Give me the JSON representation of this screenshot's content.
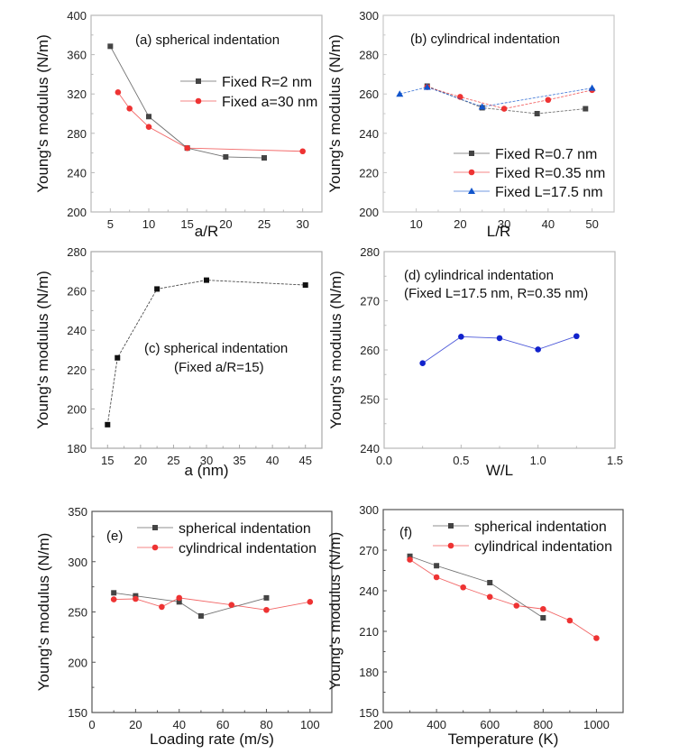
{
  "colors": {
    "black": "#444444",
    "red": "#ee3333",
    "blue": "#1155cc",
    "darkblue": "#1122cc",
    "frame_light": "#b8b8b8",
    "frame_dark": "#555555"
  },
  "chart_data": [
    {
      "id": "a",
      "type": "line",
      "annotation": [
        "(a) spherical indentation"
      ],
      "xlabel": "a/R",
      "ylabel": "Young's modulus (N/m)",
      "xlim": [
        2.5,
        32.5
      ],
      "ylim": [
        200,
        400
      ],
      "xticks": [
        5,
        10,
        15,
        20,
        25,
        30
      ],
      "yticks": [
        200,
        240,
        280,
        320,
        360,
        400
      ],
      "legend_position": "right",
      "series": [
        {
          "name": "Fixed R=2 nm",
          "marker": "square",
          "color": "#444444",
          "x": [
            5,
            10,
            15,
            20,
            25
          ],
          "y": [
            368.5,
            297,
            265,
            256,
            255
          ]
        },
        {
          "name": "Fixed a=30 nm",
          "marker": "circle",
          "color": "#ee3333",
          "x": [
            6,
            7.5,
            10,
            15,
            30
          ],
          "y": [
            321.7,
            305.2,
            286.5,
            265,
            261.7
          ]
        }
      ]
    },
    {
      "id": "b",
      "type": "line",
      "annotation": [
        "(b) cylindrical indentation"
      ],
      "xlabel": "L/R",
      "ylabel": "Young's modulus (N/m)",
      "xlim": [
        2.5,
        55
      ],
      "ylim": [
        200,
        300
      ],
      "xticks": [
        10,
        20,
        30,
        40,
        50
      ],
      "yticks": [
        200,
        220,
        240,
        260,
        280,
        300
      ],
      "legend_position": "bottom-right",
      "series": [
        {
          "name": "Fixed R=0.7 nm",
          "marker": "square",
          "color": "#444444",
          "x": [
            12.5,
            25,
            37.5,
            48.5
          ],
          "y": [
            264,
            253,
            250,
            252.5
          ]
        },
        {
          "name": "Fixed R=0.35 nm",
          "marker": "circle",
          "color": "#ee3333",
          "x": [
            12.5,
            20,
            30,
            40,
            50
          ],
          "y": [
            263.5,
            258.5,
            252.5,
            257,
            262
          ]
        },
        {
          "name": "Fixed L=17.5 nm",
          "marker": "triangle",
          "color": "#1155cc",
          "x": [
            6.25,
            12.5,
            25,
            50
          ],
          "y": [
            260,
            263.5,
            253.5,
            263
          ]
        }
      ]
    },
    {
      "id": "c",
      "type": "line",
      "annotation": [
        "(c) spherical indentation",
        "(Fixed a/R=15)"
      ],
      "xlabel": "a (nm)",
      "ylabel": "Young's modulus (N/m)",
      "xlim": [
        12.5,
        47.5
      ],
      "ylim": [
        180,
        280
      ],
      "xticks": [
        15,
        20,
        25,
        30,
        35,
        40,
        45
      ],
      "yticks": [
        180,
        200,
        220,
        240,
        260,
        280
      ],
      "series": [
        {
          "name": "spherical",
          "marker": "square",
          "color": "#111111",
          "x": [
            15,
            16.5,
            22.5,
            30,
            45
          ],
          "y": [
            192,
            226,
            261,
            265.5,
            263
          ]
        }
      ]
    },
    {
      "id": "d",
      "type": "line",
      "annotation": [
        "(d) cylindrical indentation",
        "(Fixed L=17.5 nm, R=0.35 nm)"
      ],
      "xlabel": "W/L",
      "ylabel": "Young's modulus (N/m)",
      "xlim": [
        0,
        1.5
      ],
      "ylim": [
        240,
        280
      ],
      "xticks": [
        0.0,
        0.5,
        1.0,
        1.5
      ],
      "xtick_labels": [
        "0.0",
        "0.5",
        "1.0",
        "1.5"
      ],
      "yticks": [
        240,
        250,
        260,
        270,
        280
      ],
      "series": [
        {
          "name": "cylindrical",
          "marker": "circle",
          "color": "#1122cc",
          "x": [
            0.25,
            0.5,
            0.75,
            1.0,
            1.25
          ],
          "y": [
            257.3,
            262.7,
            262.4,
            260.1,
            262.8
          ]
        }
      ]
    },
    {
      "id": "e",
      "type": "line",
      "annotation": [
        "(e)"
      ],
      "xlabel": "Loading rate (m/s)",
      "ylabel": "Young's modulus (N/m)",
      "xlim": [
        0,
        110
      ],
      "ylim": [
        150,
        350
      ],
      "xticks": [
        0,
        20,
        40,
        60,
        80,
        100
      ],
      "yticks": [
        150,
        200,
        250,
        300,
        350
      ],
      "legend_position": "top-right",
      "series": [
        {
          "name": "spherical indentation",
          "marker": "square",
          "color": "#444444",
          "x": [
            10,
            20,
            40,
            50,
            80
          ],
          "y": [
            269,
            266,
            260,
            246,
            264
          ]
        },
        {
          "name": "cylindrical indentation",
          "marker": "circle",
          "color": "#ee3333",
          "x": [
            10,
            20,
            32,
            40,
            64,
            80,
            100
          ],
          "y": [
            262.5,
            263,
            255,
            264,
            257,
            252,
            260
          ]
        }
      ]
    },
    {
      "id": "f",
      "type": "line",
      "annotation": [
        "(f)"
      ],
      "xlabel": "Temperature (K)",
      "ylabel": "Young's modulus (N/m)",
      "xlim": [
        200,
        1100
      ],
      "ylim": [
        150,
        300
      ],
      "xticks": [
        200,
        400,
        600,
        800,
        1000
      ],
      "yticks": [
        150,
        180,
        210,
        240,
        270,
        300
      ],
      "legend_position": "top-right",
      "series": [
        {
          "name": "spherical indentation",
          "marker": "square",
          "color": "#444444",
          "x": [
            300,
            400,
            600,
            800
          ],
          "y": [
            265.5,
            258.5,
            246,
            220
          ]
        },
        {
          "name": "cylindrical indentation",
          "marker": "circle",
          "color": "#ee3333",
          "x": [
            300,
            400,
            500,
            600,
            700,
            800,
            900,
            1000
          ],
          "y": [
            263,
            250,
            242.5,
            235.5,
            229,
            226.5,
            218,
            205
          ]
        }
      ]
    }
  ]
}
